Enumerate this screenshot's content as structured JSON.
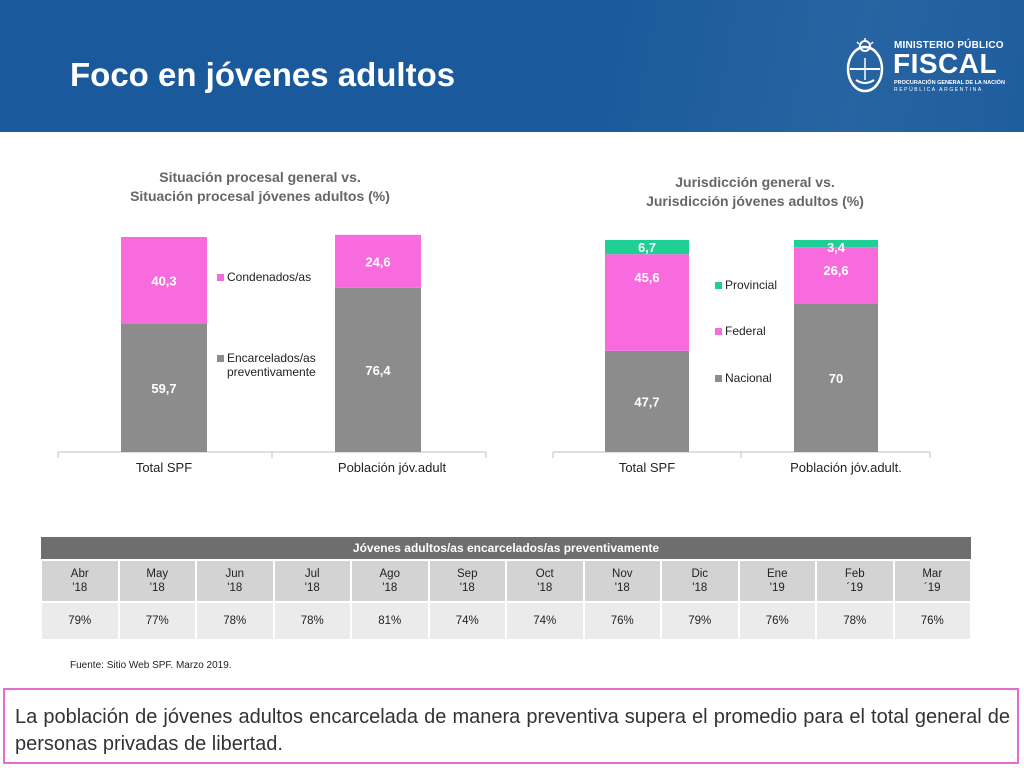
{
  "slide": {
    "title": "Foco en jóvenes adultos"
  },
  "logo": {
    "line1": "MINISTERIO PÚBLICO",
    "line2": "FISCAL",
    "line3": "PROCURACIÓN GENERAL DE LA NACIÓN",
    "line4": "REPÚBLICA ARGENTINA"
  },
  "colors": {
    "header_bg": "#1a5a9c",
    "gray_series": "#8c8c8c",
    "pink_series": "#f76bde",
    "green_series": "#1fcf95",
    "box_border": "#e86bd0"
  },
  "chart_data": [
    {
      "type": "bar",
      "stacked": true,
      "title": "Situación procesal general  vs.",
      "subtitle": "Situación procesal jóvenes adultos (%)",
      "categories": [
        "Total SPF",
        "Población jóv.adult"
      ],
      "series": [
        {
          "name": "Encarcelados/as preventivamente",
          "values": [
            59.7,
            76.4
          ],
          "labels": [
            "59,7",
            "76,4"
          ],
          "color": "#8c8c8c"
        },
        {
          "name": "Condenados/as",
          "values": [
            40.3,
            24.6
          ],
          "labels": [
            "40,3",
            "24,6"
          ],
          "color": "#f76bde"
        }
      ],
      "ylim": [
        0,
        100
      ],
      "grid": false,
      "legend": "right"
    },
    {
      "type": "bar",
      "stacked": true,
      "title": "Jurisdicción general vs.",
      "subtitle": "Jurisdicción jóvenes adultos (%)",
      "categories": [
        "Total SPF",
        "Población jóv.adult."
      ],
      "series": [
        {
          "name": "Nacional",
          "values": [
            47.7,
            70
          ],
          "labels": [
            "47,7",
            "70"
          ],
          "color": "#8c8c8c"
        },
        {
          "name": "Federal",
          "values": [
            45.6,
            26.6
          ],
          "labels": [
            "45,6",
            "26,6"
          ],
          "color": "#f76bde"
        },
        {
          "name": "Provincial",
          "values": [
            6.7,
            3.4
          ],
          "labels": [
            "6,7",
            "3,4"
          ],
          "color": "#1fcf95"
        }
      ],
      "ylim": [
        0,
        100
      ],
      "grid": false,
      "legend": "right"
    },
    {
      "type": "table",
      "title": "Jóvenes adultos/as encarcelados/as preventivamente",
      "columns": [
        {
          "month": "Abr",
          "year": "'18",
          "value": "79%"
        },
        {
          "month": "May",
          "year": "'18",
          "value": "77%"
        },
        {
          "month": "Jun",
          "year": "'18",
          "value": "78%"
        },
        {
          "month": "Jul",
          "year": "'18",
          "value": "78%"
        },
        {
          "month": "Ago",
          "year": "'18",
          "value": "81%"
        },
        {
          "month": "Sep",
          "year": "'18",
          "value": "74%"
        },
        {
          "month": "Oct",
          "year": "'18",
          "value": "74%"
        },
        {
          "month": "Nov",
          "year": "'18",
          "value": "76%"
        },
        {
          "month": "Dic",
          "year": "'18",
          "value": "79%"
        },
        {
          "month": "Ene",
          "year": "'19",
          "value": "76%"
        },
        {
          "month": "Feb",
          "year": "´19",
          "value": "78%"
        },
        {
          "month": "Mar",
          "year": "´19",
          "value": "76%"
        }
      ]
    }
  ],
  "source": "Fuente: Sitio Web SPF. Marzo 2019.",
  "conclusion": "La población de jóvenes adultos encarcelada de manera preventiva supera el promedio para el total general de personas privadas de libertad."
}
